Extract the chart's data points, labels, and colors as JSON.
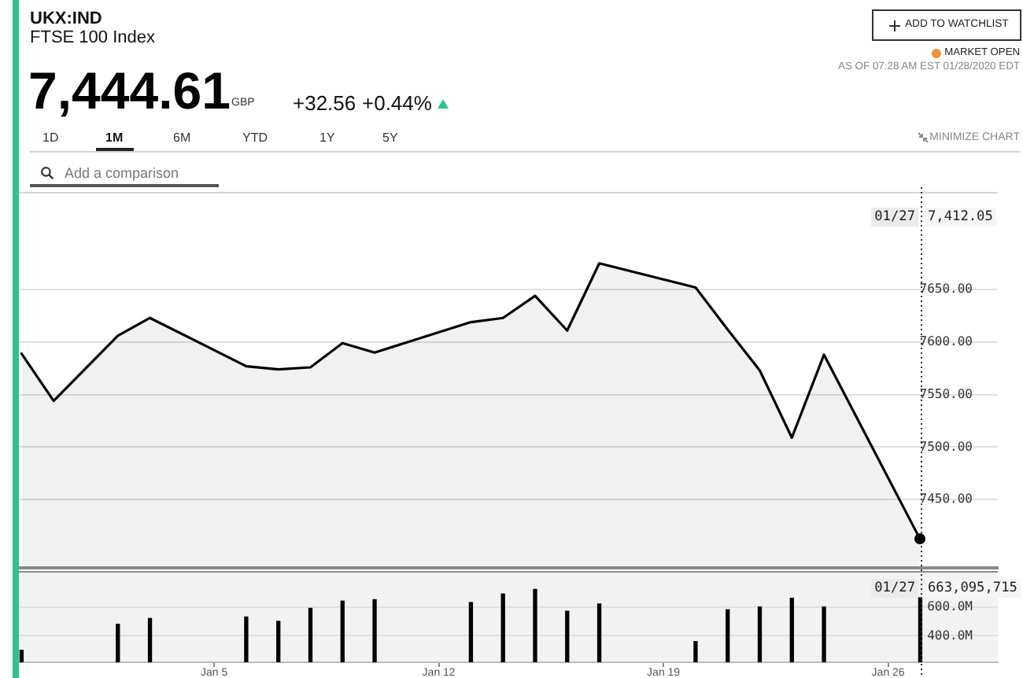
{
  "chart_data": [
    {
      "type": "other",
      "title": "UKX:IND",
      "subtitle": "FTSE 100 Index",
      "annotations": [
        "7,444.61",
        "GBP",
        "+32.56",
        "+0.44%",
        "ADD TO WATCHLIST",
        "MARKET OPEN",
        "AS OF 07:28 AM EST 01/28/2020 EDT",
        "1D",
        "1M",
        "6M",
        "YTD",
        "1Y",
        "5Y",
        "MINIMIZE CHART",
        "Add a comparison"
      ]
    },
    {
      "type": "area",
      "x": [
        "2019-12-30",
        "2019-12-31",
        "2020-01-02",
        "2020-01-03",
        "2020-01-06",
        "2020-01-07",
        "2020-01-08",
        "2020-01-09",
        "2020-01-10",
        "2020-01-13",
        "2020-01-14",
        "2020-01-15",
        "2020-01-16",
        "2020-01-17",
        "2020-01-20",
        "2020-01-21",
        "2020-01-22",
        "2020-01-23",
        "2020-01-24",
        "2020-01-27"
      ],
      "series": [
        {
          "color": "#000000",
          "values": [
            7589,
            7544,
            7606,
            7623,
            7577,
            7574,
            7576,
            7599,
            7590,
            7619,
            7623,
            7644,
            7611,
            7675,
            7652,
            7612,
            7573,
            7509,
            7588,
            7412.05
          ]
        }
      ],
      "annotations": [
        "7,412.05"
      ],
      "xlim": [
        "2019-12-29T22:00",
        "2020-01-29T10:00"
      ],
      "ylim": [
        7385,
        7743
      ],
      "yticks": [
        {
          "value": 7450,
          "label": "7450.00"
        },
        {
          "value": 7500,
          "label": "7500.00"
        },
        {
          "value": 7550,
          "label": "7550.00"
        },
        {
          "value": 7600,
          "label": "7600.00"
        },
        {
          "value": 7650,
          "label": "7650.00"
        }
      ],
      "grid": "y",
      "tick_labels": "y",
      "ref_lines": [
        {
          "axis": "x",
          "value": "2020-01-27",
          "label": "01/27",
          "line_style": "dotted"
        }
      ]
    },
    {
      "type": "bar",
      "x": [
        "2019-12-30",
        "2019-12-31",
        "2020-01-02",
        "2020-01-03",
        "2020-01-06",
        "2020-01-07",
        "2020-01-08",
        "2020-01-09",
        "2020-01-10",
        "2020-01-13",
        "2020-01-14",
        "2020-01-15",
        "2020-01-16",
        "2020-01-17",
        "2020-01-20",
        "2020-01-21",
        "2020-01-22",
        "2020-01-23",
        "2020-01-24",
        "2020-01-27"
      ],
      "values": [
        300000000,
        null,
        480000000,
        520000000,
        530000000,
        500000000,
        590000000,
        640000000,
        650000000,
        630000000,
        690000000,
        720000000,
        570000000,
        620000000,
        360000000,
        580000000,
        600000000,
        660000000,
        600000000,
        663095715
      ],
      "color": "#000000",
      "annotations": [
        "663,095,715"
      ],
      "xlim": [
        "2019-12-29T22:00",
        "2020-01-29T10:00"
      ],
      "ylim": [
        217000000,
        848000000
      ],
      "yticks": [
        {
          "value": 400000000,
          "label": "400.0M"
        },
        {
          "value": 600000000,
          "label": "600.0M"
        }
      ],
      "xticks": [
        {
          "value": "2020-01-05",
          "label": "Jan 5"
        },
        {
          "value": "2020-01-12",
          "label": "Jan 12"
        },
        {
          "value": "2020-01-19",
          "label": "Jan 19"
        },
        {
          "value": "2020-01-26",
          "label": "Jan 26"
        }
      ],
      "grid": "y",
      "ref_lines": [
        {
          "axis": "x",
          "value": "2020-01-27",
          "label": "01/27",
          "line_style": "dotted"
        }
      ]
    }
  ]
}
